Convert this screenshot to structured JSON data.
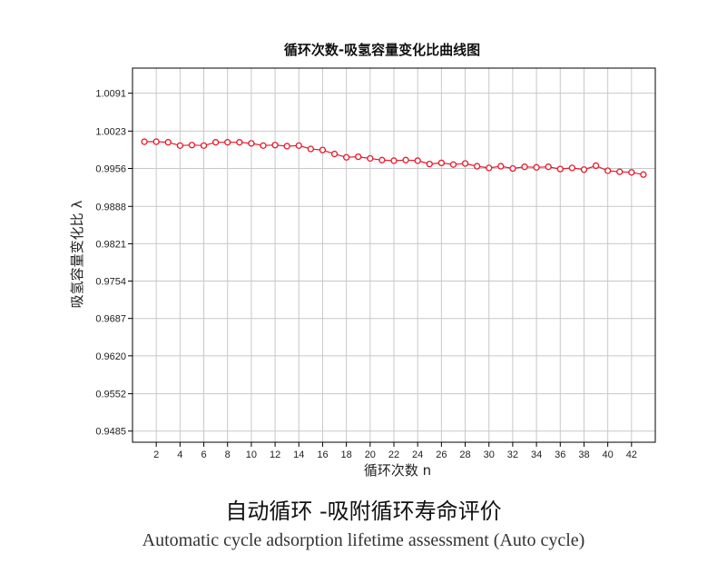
{
  "caption": {
    "zh": "自动循环 -吸附循环寿命评价",
    "en": "Automatic cycle adsorption lifetime assessment (Auto cycle)"
  },
  "colors": {
    "series": "#e8182a",
    "grid": "#c8c8c8",
    "axis": "#000000"
  },
  "chart_data": {
    "type": "line",
    "title": "循环次数-吸氢容量变化比曲线图",
    "xlabel": "循环次数 n",
    "ylabel": "吸氢容量变化比 λ",
    "xlim": [
      0,
      44
    ],
    "ylim": [
      0.9465,
      1.0136
    ],
    "x_ticks": [
      2,
      4,
      6,
      8,
      10,
      12,
      14,
      16,
      18,
      20,
      22,
      24,
      26,
      28,
      30,
      32,
      34,
      36,
      38,
      40,
      42
    ],
    "y_ticks": [
      1.0091,
      1.0023,
      0.9956,
      0.9888,
      0.9821,
      0.9754,
      0.9687,
      0.962,
      0.9552,
      0.9485
    ],
    "y_tick_labels": [
      "1.0091",
      "1.0023",
      "0.9956",
      "0.9888",
      "0.9821",
      "0.9754",
      "0.9687",
      "0.9620",
      "0.9552",
      "0.9485"
    ],
    "grid": true,
    "legend": "none",
    "series": [
      {
        "x": [
          1,
          2,
          3,
          4,
          5,
          6,
          7,
          8,
          9,
          10,
          11,
          12,
          13,
          14,
          15,
          16,
          17,
          18,
          19,
          20,
          21,
          22,
          23,
          24,
          25,
          26,
          27,
          28,
          29,
          30,
          31,
          32,
          33,
          34,
          35,
          36,
          37,
          38,
          39,
          40,
          41,
          42,
          43
        ],
        "values": [
          1.0004,
          1.0004,
          1.0003,
          0.9997,
          0.9998,
          0.9997,
          1.0003,
          1.0003,
          1.0003,
          1.0001,
          0.9997,
          0.9998,
          0.9996,
          0.9997,
          0.9991,
          0.9989,
          0.9982,
          0.9976,
          0.9977,
          0.9974,
          0.9971,
          0.997,
          0.9971,
          0.997,
          0.9964,
          0.9966,
          0.9963,
          0.9965,
          0.996,
          0.9957,
          0.996,
          0.9956,
          0.9959,
          0.9958,
          0.9959,
          0.9955,
          0.9957,
          0.9954,
          0.9961,
          0.9952,
          0.995,
          0.9949,
          0.9945
        ]
      }
    ]
  }
}
